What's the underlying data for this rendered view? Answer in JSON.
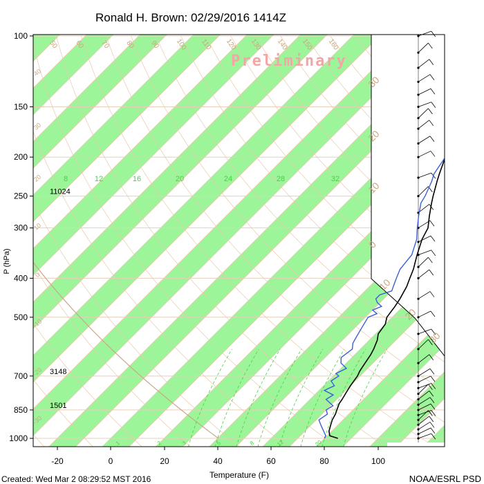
{
  "chart_data": {
    "type": "line",
    "diagram": "skew-t log-p",
    "title": "Ronald H. Brown: 02/29/2016 1414Z",
    "watermark": "Preliminary",
    "xlabel": "Temperature (F)",
    "ylabel": "P (hPa)",
    "xlim": [
      -28,
      115
    ],
    "ylim": [
      1050,
      100
    ],
    "y_scale": "log",
    "x_ticks": [
      "-20",
      "0",
      "20",
      "40",
      "60",
      "80",
      "100"
    ],
    "y_ticks": [
      "100",
      "150",
      "200",
      "250",
      "300",
      "400",
      "500",
      "700",
      "850",
      "1000"
    ],
    "footer_left": "Created: Wed Mar  2 08:29:52 MST 2016",
    "footer_right": "NOAA/ESRL PSD",
    "heights": [
      {
        "pressure": 250,
        "label": "11024"
      },
      {
        "pressure": 700,
        "label": "3148"
      },
      {
        "pressure": 850,
        "label": "1501"
      }
    ],
    "mixing_ratio_labels": [
      "8",
      "12",
      "16",
      "20",
      "24",
      "28",
      "32"
    ],
    "bottom_mixing_labels": [
      "1",
      "2",
      "3",
      "5",
      "8",
      "12",
      "20"
    ],
    "isotherm_labels": [
      "50",
      "60",
      "70",
      "80",
      "90",
      "100",
      "110",
      "120",
      "130",
      "140",
      "150",
      "160"
    ],
    "adiabat_labels": [
      "40",
      "30",
      "20",
      "10",
      "0",
      "-10",
      "-20",
      "-30"
    ],
    "theta_e_labels": [
      "30",
      "20",
      "10",
      "0",
      "10",
      "20",
      "30"
    ],
    "series": [
      {
        "name": "Temperature",
        "points": [
          [
            1000,
            85
          ],
          [
            985,
            81
          ],
          [
            960,
            79
          ],
          [
            930,
            77.5
          ],
          [
            900,
            76
          ],
          [
            870,
            75
          ],
          [
            850,
            74
          ],
          [
            820,
            72.5
          ],
          [
            800,
            72
          ],
          [
            770,
            71
          ],
          [
            740,
            70
          ],
          [
            700,
            69
          ],
          [
            680,
            68
          ],
          [
            650,
            67
          ],
          [
            620,
            66
          ],
          [
            600,
            65
          ],
          [
            570,
            63
          ],
          [
            550,
            61
          ],
          [
            520,
            60
          ],
          [
            500,
            58
          ],
          [
            470,
            57
          ],
          [
            450,
            56
          ],
          [
            420,
            54
          ],
          [
            400,
            52
          ],
          [
            380,
            50
          ],
          [
            350,
            46
          ],
          [
            320,
            42
          ],
          [
            300,
            40
          ],
          [
            280,
            36
          ],
          [
            260,
            32
          ],
          [
            250,
            30
          ],
          [
            230,
            26
          ],
          [
            220,
            24
          ],
          [
            200,
            20
          ],
          [
            185,
            17
          ],
          [
            170,
            12
          ],
          [
            160,
            11
          ],
          [
            150,
            10
          ],
          [
            140,
            8
          ],
          [
            130,
            6
          ],
          [
            120,
            4
          ],
          [
            110,
            0
          ],
          [
            100,
            -4
          ]
        ],
        "color": "#000000"
      },
      {
        "name": "Dew point",
        "points": [
          [
            1000,
            80
          ],
          [
            985,
            79.5
          ],
          [
            960,
            77
          ],
          [
            930,
            74
          ],
          [
            900,
            71
          ],
          [
            870,
            72
          ],
          [
            850,
            70
          ],
          [
            830,
            71
          ],
          [
            800,
            66
          ],
          [
            780,
            67
          ],
          [
            760,
            62
          ],
          [
            740,
            64
          ],
          [
            720,
            61
          ],
          [
            700,
            62
          ],
          [
            690,
            60
          ],
          [
            670,
            62
          ],
          [
            650,
            58
          ],
          [
            630,
            56
          ],
          [
            600,
            57
          ],
          [
            580,
            55
          ],
          [
            560,
            54
          ],
          [
            540,
            53
          ],
          [
            520,
            52
          ],
          [
            500,
            51
          ],
          [
            490,
            53
          ],
          [
            480,
            50
          ],
          [
            470,
            52
          ],
          [
            460,
            49
          ],
          [
            450,
            47
          ],
          [
            440,
            47
          ],
          [
            430,
            50
          ],
          [
            420,
            49
          ],
          [
            400,
            47
          ],
          [
            380,
            45
          ],
          [
            350,
            44
          ],
          [
            320,
            40
          ],
          [
            300,
            36
          ],
          [
            280,
            32
          ],
          [
            260,
            28
          ],
          [
            250,
            27
          ],
          [
            230,
            24
          ],
          [
            220,
            22
          ],
          [
            200,
            20
          ],
          [
            185,
            17
          ],
          [
            170,
            12
          ],
          [
            160,
            6
          ],
          [
            150,
            2
          ],
          [
            140,
            0
          ],
          [
            130,
            -4
          ],
          [
            120,
            -6
          ],
          [
            110,
            -6
          ],
          [
            100,
            -10
          ]
        ],
        "color": "#3a5fd9"
      }
    ],
    "wind_pressures": [
      1000,
      975,
      950,
      925,
      900,
      875,
      850,
      825,
      800,
      775,
      750,
      725,
      700,
      650,
      600,
      550,
      500,
      450,
      400,
      375,
      350,
      325,
      300,
      275,
      250,
      225,
      200,
      185,
      170,
      160,
      150,
      140,
      130,
      120,
      110,
      100
    ]
  },
  "colors": {
    "band": "#9df59a",
    "isotherm": "#e8c9a8",
    "isotherm_label": "#c9a67e",
    "mixing_ratio": "#3fd63f",
    "temperature": "#000000",
    "dewpoint": "#3a5fd9",
    "parcel": "#c8a888",
    "watermark": "#f2a6a6"
  }
}
